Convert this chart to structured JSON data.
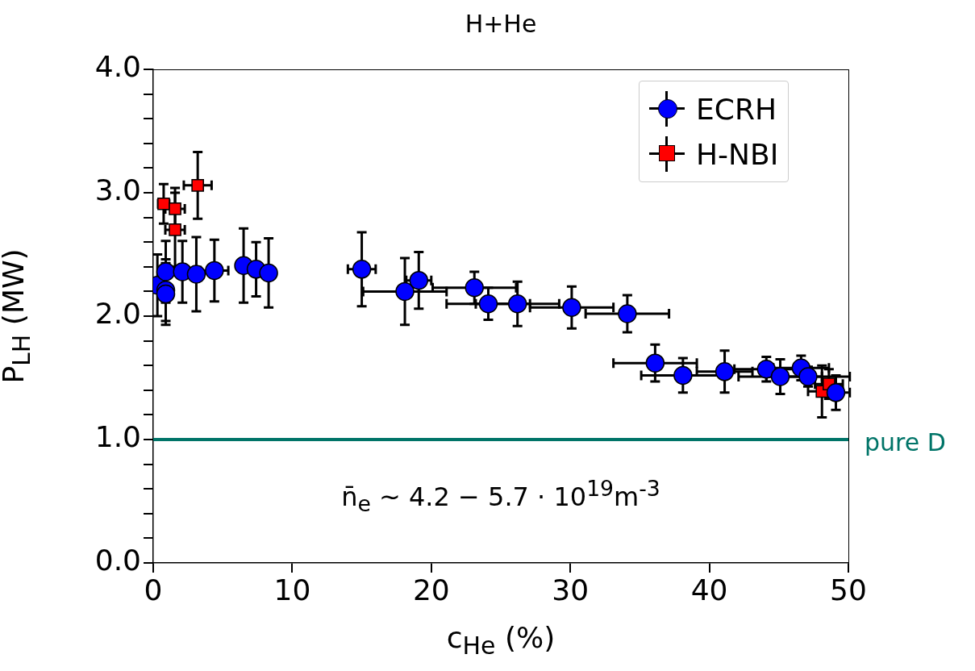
{
  "chart_data": {
    "type": "scatter",
    "title": "H+He",
    "xlabel": "c$_{He}$ (%)",
    "ylabel": "P$_{LH}$ (MW)",
    "xlim": [
      0,
      50
    ],
    "xticks": [
      0,
      10,
      20,
      30,
      40,
      50
    ],
    "ylim": [
      0,
      4
    ],
    "yticks": [
      {
        "value": 0,
        "label": "0.0"
      },
      {
        "value": 0.2,
        "label": null
      },
      {
        "value": 0.4,
        "label": null
      },
      {
        "value": 0.6,
        "label": null
      },
      {
        "value": 0.8,
        "label": null
      },
      {
        "value": 1,
        "label": "1.0"
      },
      {
        "value": 1.2,
        "label": null
      },
      {
        "value": 1.4,
        "label": null
      },
      {
        "value": 1.6,
        "label": null
      },
      {
        "value": 1.8,
        "label": null
      },
      {
        "value": 2,
        "label": "2.0"
      },
      {
        "value": 2.2,
        "label": null
      },
      {
        "value": 2.4,
        "label": null
      },
      {
        "value": 2.6,
        "label": null
      },
      {
        "value": 2.8,
        "label": null
      },
      {
        "value": 3,
        "label": "3.0"
      },
      {
        "value": 3.2,
        "label": null
      },
      {
        "value": 3.4,
        "label": null
      },
      {
        "value": 3.6,
        "label": null
      },
      {
        "value": 3.8,
        "label": null
      },
      {
        "value": 4,
        "label": "4.0"
      }
    ],
    "grid": false,
    "legend": "top right",
    "series": [
      {
        "name": "ECRH",
        "color": "#0000ff",
        "marker": "circle",
        "x": [
          0.3,
          0.9,
          0.9,
          0.9,
          2.1,
          3.1,
          4.4,
          6.5,
          7.4,
          8.3,
          15.0,
          18.1,
          19.1,
          23.1,
          24.1,
          26.2,
          30.1,
          34.1,
          36.1,
          38.1,
          41.1,
          44.1,
          45.1,
          46.6,
          47.1,
          49.1
        ],
        "values": [
          2.25,
          2.36,
          2.21,
          2.18,
          2.36,
          2.34,
          2.37,
          2.41,
          2.38,
          2.35,
          2.38,
          2.2,
          2.29,
          2.23,
          2.1,
          2.1,
          2.07,
          2.02,
          1.62,
          1.52,
          1.55,
          1.57,
          1.51,
          1.58,
          1.51,
          1.38
        ],
        "errors": [
          0.25,
          0.25,
          0.25,
          0.25,
          0.25,
          0.3,
          0.25,
          0.3,
          0.22,
          0.28,
          0.3,
          0.27,
          0.23,
          0.13,
          0.13,
          0.18,
          0.17,
          0.15,
          0.15,
          0.14,
          0.17,
          0.1,
          0.14,
          0.1,
          0.08,
          0.14
        ],
        "xerrors": [
          null,
          null,
          null,
          null,
          null,
          null,
          1,
          null,
          null,
          null,
          1,
          3,
          0.9,
          3,
          3,
          3,
          3,
          3,
          3,
          3,
          2,
          2.3,
          3,
          2,
          3,
          1
        ]
      },
      {
        "name": "H-NBI",
        "color": "#ff0000",
        "marker": "square",
        "x": [
          0.75,
          1.57,
          1.57,
          3.2,
          48.1,
          48.6
        ],
        "values": [
          2.91,
          2.87,
          2.7,
          3.06,
          1.39,
          1.45
        ],
        "errors": [
          0.16,
          0.17,
          0.3,
          0.27,
          0.21,
          0.12
        ],
        "xerrors": [
          0.4,
          0.7,
          0.7,
          1,
          1,
          1
        ]
      }
    ],
    "ref_lines": [
      {
        "axis": "y",
        "value": 1,
        "label": "pure D",
        "color": "#007468"
      }
    ],
    "annotations": [
      "n̄$_{e}$ ~ 4.2 − 5.7 · 10$^{19}$m$^{-3}$"
    ]
  }
}
